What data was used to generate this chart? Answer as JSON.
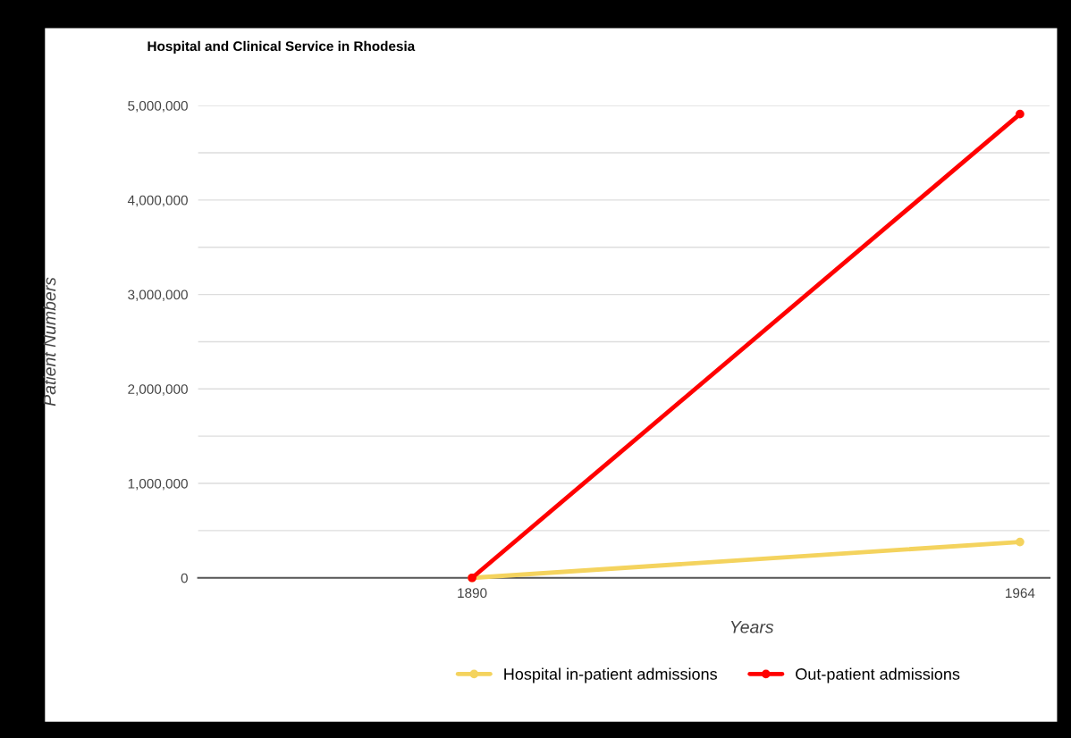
{
  "chart_data": {
    "type": "line",
    "title": "Hospital and Clinical Service in Rhodesia",
    "xlabel": "Years",
    "ylabel": "Patient Numbers",
    "x": [
      1890,
      1964
    ],
    "series": [
      {
        "name": "Hospital in-patient admissions",
        "color": "#f4d35e",
        "values": [
          0,
          380000
        ]
      },
      {
        "name": "Out-patient admissions",
        "color": "#ff0000",
        "values": [
          0,
          4910000
        ]
      }
    ],
    "xlim": [
      1853,
      1968
    ],
    "xticks": [
      1890,
      1964
    ],
    "ylim": [
      0,
      5000000
    ],
    "yticks": [
      0,
      {
        "value": 500000,
        "label": null
      },
      {
        "value": 1000000,
        "label": "1,000,000"
      },
      {
        "value": 1500000,
        "label": null
      },
      {
        "value": 2000000,
        "label": "2,000,000"
      },
      {
        "value": 2500000,
        "label": null
      },
      {
        "value": 3000000,
        "label": "3,000,000"
      },
      {
        "value": 3500000,
        "label": null
      },
      {
        "value": 4000000,
        "label": "4,000,000"
      },
      {
        "value": 4500000,
        "label": null
      },
      {
        "value": 5000000,
        "label": "5,000,000"
      }
    ],
    "grid": "y",
    "legend": "bottom",
    "marker": "circle",
    "line_style": "solid"
  }
}
